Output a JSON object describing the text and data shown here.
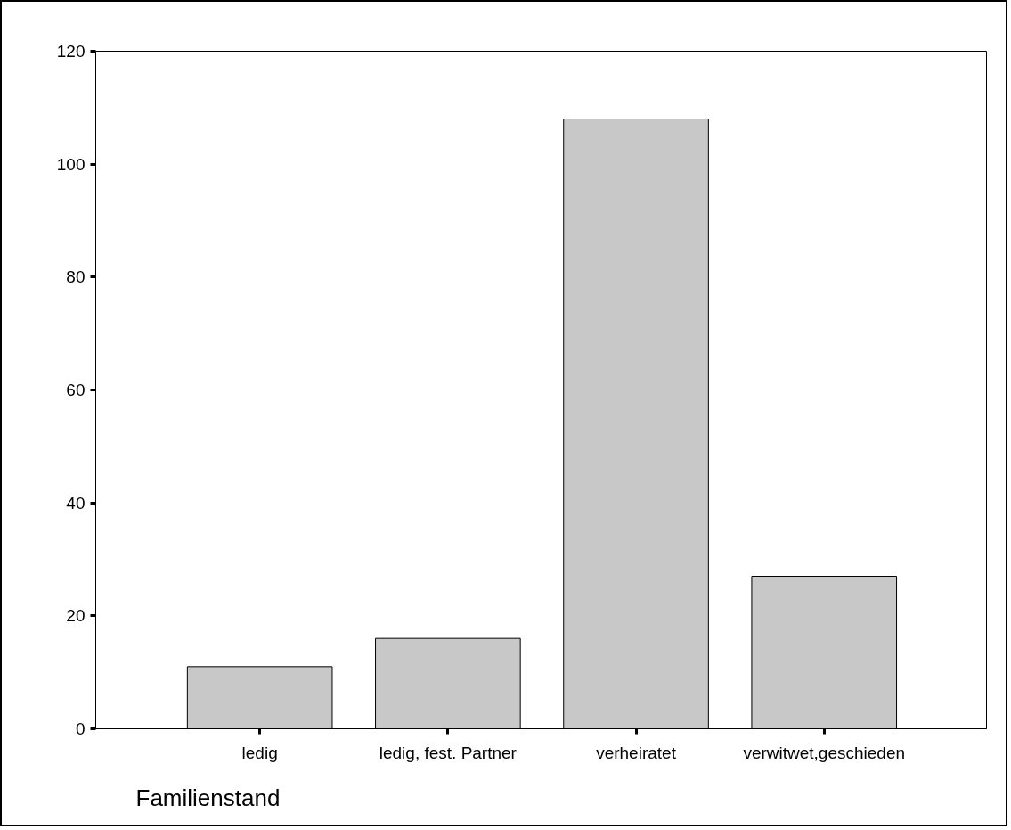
{
  "chart_data": {
    "type": "bar",
    "categories": [
      "ledig",
      "ledig, fest. Partner",
      "verheiratet",
      "verwitwet,geschieden"
    ],
    "values": [
      11,
      16,
      108,
      27
    ],
    "color": "#c8c8c8",
    "xlabel": "Familienstand",
    "ylim": [
      0,
      120
    ],
    "yticks": [
      0,
      20,
      40,
      60,
      80,
      100,
      120
    ],
    "grid": false
  }
}
